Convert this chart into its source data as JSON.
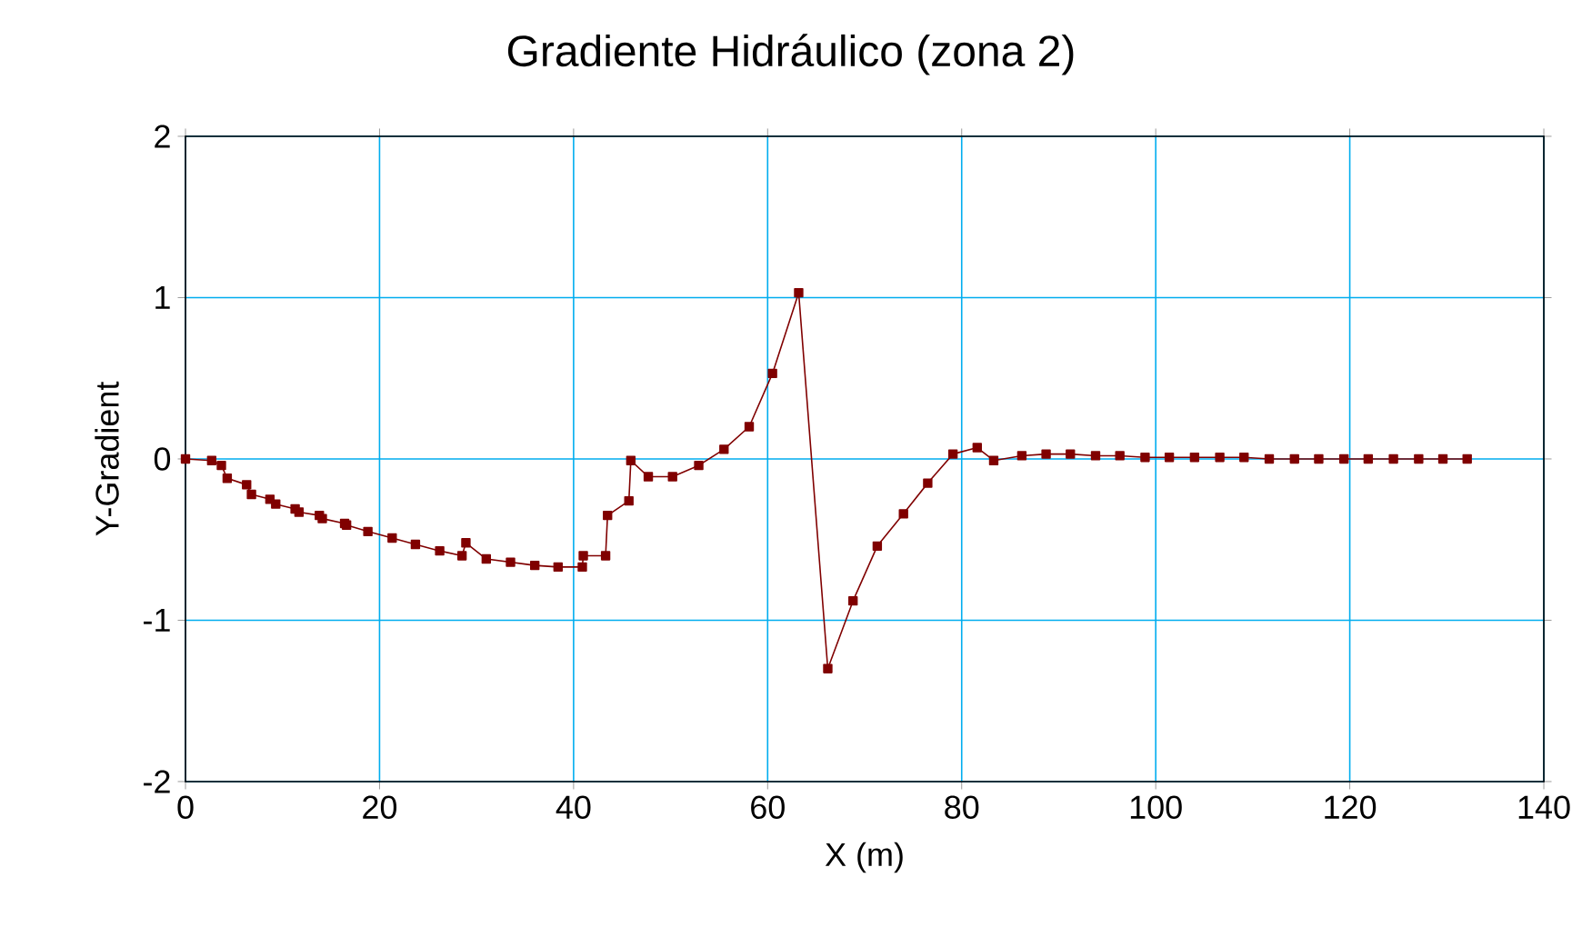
{
  "chart_data": {
    "type": "line",
    "title": "Gradiente Hidráulico (zona 2)",
    "xlabel": "X (m)",
    "ylabel": "Y-Gradient",
    "xlim": [
      0,
      140
    ],
    "xticks": [
      0,
      20,
      40,
      60,
      80,
      100,
      120,
      140
    ],
    "ylim": [
      -2,
      2
    ],
    "yticks": [
      -2,
      -1,
      0,
      1,
      2
    ],
    "grid": true,
    "marker": "square",
    "line_style": "solid",
    "series": [
      {
        "color": "#800000",
        "x": [
          0,
          2.7,
          3.7,
          4.3,
          6.3,
          6.8,
          8.7,
          9.3,
          11.3,
          11.7,
          13.8,
          14.1,
          16.4,
          16.6,
          18.8,
          21.3,
          23.7,
          26.2,
          28.5,
          28.9,
          31.0,
          33.5,
          36.0,
          38.4,
          40.9,
          41.0,
          43.3,
          43.5,
          45.7,
          45.9,
          47.7,
          50.2,
          52.9,
          55.5,
          58.1,
          60.5,
          63.2,
          66.2,
          68.8,
          71.3,
          74.0,
          76.5,
          79.1,
          81.6,
          83.3,
          86.2,
          88.7,
          91.2,
          93.8,
          96.3,
          98.9,
          101.4,
          104.0,
          106.6,
          109.1,
          111.7,
          114.3,
          116.8,
          119.4,
          121.9,
          124.5,
          127.1,
          129.6,
          132.1
        ],
        "values": [
          0,
          -0.01,
          -0.04,
          -0.12,
          -0.16,
          -0.22,
          -0.25,
          -0.28,
          -0.31,
          -0.33,
          -0.35,
          -0.37,
          -0.4,
          -0.41,
          -0.45,
          -0.49,
          -0.53,
          -0.57,
          -0.6,
          -0.52,
          -0.62,
          -0.64,
          -0.66,
          -0.67,
          -0.67,
          -0.6,
          -0.6,
          -0.35,
          -0.26,
          -0.01,
          -0.11,
          -0.11,
          -0.04,
          0.06,
          0.2,
          0.53,
          1.03,
          -1.3,
          -0.88,
          -0.54,
          -0.34,
          -0.15,
          0.03,
          0.07,
          -0.01,
          0.02,
          0.03,
          0.03,
          0.02,
          0.02,
          0.01,
          0.01,
          0.01,
          0.01,
          0.01,
          0.0,
          0.0,
          0.0,
          0.0,
          0.0,
          0.0,
          0.0,
          0.0,
          0.0
        ]
      }
    ]
  }
}
